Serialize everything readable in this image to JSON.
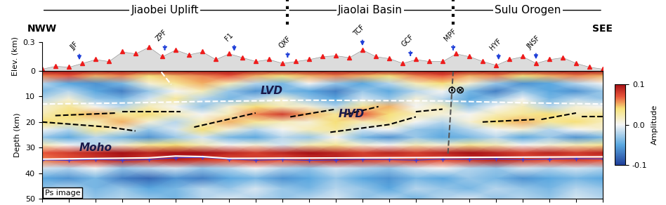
{
  "header": {
    "left": "NWW",
    "right": "SEE",
    "regions": [
      {
        "name": "Jiaobei Uplift",
        "x_range": [
          0,
          92
        ]
      },
      {
        "name": "Jiaolai Basin",
        "x_range": [
          92,
          154
        ]
      },
      {
        "name": "Sulu Orogen",
        "x_range": [
          154,
          210
        ]
      }
    ]
  },
  "chart_data": [
    {
      "type": "area",
      "ylabel": "Elev. (km)",
      "xlim": [
        0,
        210
      ],
      "ylim": [
        0,
        0.3
      ],
      "yticks": [
        0,
        0.3
      ],
      "tick_labels": "y",
      "x": [
        0,
        5,
        10,
        15,
        20,
        25,
        30,
        35,
        40,
        45,
        50,
        55,
        60,
        65,
        70,
        75,
        80,
        85,
        90,
        95,
        100,
        105,
        110,
        115,
        120,
        125,
        130,
        135,
        140,
        145,
        150,
        155,
        160,
        165,
        170,
        175,
        180,
        185,
        190,
        195,
        200,
        205,
        210
      ],
      "series": [
        {
          "type": "area",
          "color": "#dcdcdc",
          "values": [
            0.02,
            0.05,
            0.04,
            0.08,
            0.12,
            0.1,
            0.2,
            0.18,
            0.25,
            0.15,
            0.22,
            0.17,
            0.2,
            0.12,
            0.18,
            0.14,
            0.1,
            0.12,
            0.08,
            0.1,
            0.12,
            0.15,
            0.16,
            0.14,
            0.22,
            0.15,
            0.13,
            0.08,
            0.12,
            0.1,
            0.1,
            0.18,
            0.15,
            0.1,
            0.06,
            0.12,
            0.15,
            0.08,
            0.12,
            0.14,
            0.08,
            0.04,
            0.02
          ]
        },
        {
          "type": "scatter",
          "color": "#ee1c1c",
          "marker": "triangle",
          "values": [
            0.02,
            0.05,
            0.04,
            0.08,
            0.12,
            0.1,
            0.2,
            0.18,
            0.25,
            0.15,
            0.22,
            0.17,
            0.2,
            0.12,
            0.18,
            0.14,
            0.1,
            0.12,
            0.08,
            0.1,
            0.12,
            0.15,
            0.16,
            0.14,
            0.22,
            0.15,
            0.13,
            0.08,
            0.12,
            0.1,
            0.1,
            0.18,
            0.15,
            0.1,
            0.06,
            0.12,
            0.15,
            0.08,
            0.12,
            0.14,
            0.08,
            0.04,
            0.02
          ]
        }
      ],
      "faults": [
        {
          "label": "JJF",
          "x": 14,
          "color": "#1f3fd8",
          "line_style": "solid"
        },
        {
          "label": "ZPF",
          "x": 46,
          "color": "#1f3fd8",
          "line_style": "dotted"
        },
        {
          "label": "F1",
          "x": 72,
          "color": "#1f3fd8",
          "line_style": "solid"
        },
        {
          "label": "QXF",
          "x": 92,
          "color": "#1f3fd8",
          "line_style": "dotted"
        },
        {
          "label": "TCF",
          "x": 120,
          "color": "#1f3fd8",
          "line_style": "solid"
        },
        {
          "label": "GCF",
          "x": 138,
          "color": "#1f3fd8",
          "line_style": "dotted"
        },
        {
          "label": "MPF",
          "x": 154,
          "color": "#1f3fd8",
          "line_style": "dotted"
        },
        {
          "label": "HYF",
          "x": 171,
          "color": "#1f3fd8",
          "line_style": "solid"
        },
        {
          "label": "JNSF",
          "x": 185,
          "color": "#1f3fd8",
          "line_style": "solid"
        }
      ]
    },
    {
      "type": "heatmap",
      "ylabel": "Depth (km)",
      "xlim": [
        0,
        210
      ],
      "ylim": [
        50,
        0
      ],
      "xticks": [
        0,
        10,
        20,
        30,
        40,
        50,
        60,
        70,
        80,
        90,
        100,
        110,
        120,
        130,
        140,
        150,
        160,
        170,
        180,
        190,
        200,
        210
      ],
      "yticks": [
        10,
        20,
        30,
        40,
        50
      ],
      "tick_labels": "y",
      "x": [
        0,
        10,
        20,
        30,
        40,
        50,
        60,
        70,
        80,
        90,
        100,
        110,
        120,
        130,
        140,
        150,
        160,
        170,
        180,
        190,
        200,
        210
      ],
      "y": [
        0,
        2,
        5,
        8,
        11,
        14,
        17,
        20,
        23,
        26,
        29,
        32,
        35,
        38,
        42,
        46,
        50
      ],
      "cells": [
        [
          0.1,
          0.1,
          0.1,
          0.1,
          0.1,
          0.1,
          0.1,
          0.1,
          0.1,
          0.1,
          0.1,
          0.1,
          0.1,
          0.1,
          0.1,
          0.1,
          0.1,
          0.1,
          0.1,
          0.1,
          0.1,
          0.1
        ],
        [
          0.06,
          0.07,
          0.05,
          0.06,
          0.04,
          0.05,
          0.06,
          0.07,
          0.05,
          0.04,
          0.05,
          0.06,
          0.05,
          0.04,
          0.06,
          0.07,
          0.05,
          0.06,
          0.04,
          0.05,
          0.06,
          0.05
        ],
        [
          -0.02,
          -0.05,
          -0.06,
          -0.04,
          0.01,
          0.03,
          0.05,
          0.02,
          -0.02,
          -0.04,
          0.0,
          -0.03,
          -0.05,
          -0.02,
          0.02,
          0.04,
          0.01,
          -0.03,
          -0.06,
          -0.05,
          -0.02,
          0.0
        ],
        [
          -0.04,
          -0.02,
          -0.05,
          -0.07,
          -0.03,
          0.0,
          0.02,
          -0.03,
          -0.06,
          -0.04,
          -0.05,
          -0.07,
          -0.03,
          -0.05,
          -0.02,
          0.0,
          -0.04,
          -0.07,
          -0.03,
          -0.05,
          -0.06,
          -0.03
        ],
        [
          -0.02,
          0.01,
          -0.03,
          -0.04,
          -0.01,
          0.03,
          -0.02,
          -0.04,
          -0.02,
          0.01,
          -0.03,
          -0.05,
          -0.01,
          -0.03,
          0.01,
          -0.02,
          -0.05,
          -0.03,
          0.0,
          -0.04,
          -0.02,
          -0.03
        ],
        [
          0.01,
          0.03,
          0.0,
          -0.02,
          0.02,
          0.0,
          -0.03,
          0.01,
          0.04,
          0.02,
          0.01,
          -0.02,
          0.03,
          0.05,
          0.0,
          0.02,
          -0.03,
          0.0,
          0.02,
          -0.02,
          0.01,
          0.0
        ],
        [
          0.02,
          0.04,
          0.05,
          0.03,
          0.04,
          0.02,
          0.0,
          0.02,
          0.06,
          0.08,
          0.05,
          0.03,
          0.07,
          0.04,
          0.02,
          0.01,
          0.0,
          0.02,
          0.03,
          0.04,
          0.02,
          0.03
        ],
        [
          0.04,
          0.03,
          0.02,
          0.05,
          0.01,
          -0.02,
          0.02,
          0.05,
          0.03,
          0.02,
          0.01,
          0.04,
          0.02,
          0.03,
          0.0,
          -0.02,
          0.01,
          0.04,
          0.05,
          0.03,
          0.04,
          0.02
        ],
        [
          0.0,
          -0.02,
          0.03,
          0.01,
          -0.03,
          -0.01,
          0.04,
          0.01,
          -0.02,
          0.0,
          0.02,
          0.03,
          -0.01,
          0.0,
          -0.03,
          -0.04,
          -0.02,
          0.0,
          0.01,
          -0.02,
          0.0,
          0.01
        ],
        [
          -0.03,
          -0.05,
          -0.02,
          -0.04,
          -0.06,
          -0.03,
          -0.01,
          -0.04,
          -0.05,
          -0.02,
          -0.03,
          0.0,
          -0.04,
          -0.06,
          -0.03,
          -0.05,
          -0.04,
          -0.02,
          -0.05,
          -0.03,
          -0.06,
          -0.04
        ],
        [
          0.02,
          0.0,
          -0.02,
          0.01,
          0.03,
          0.04,
          0.02,
          0.0,
          0.01,
          -0.01,
          0.02,
          0.03,
          0.01,
          0.0,
          0.02,
          0.01,
          0.03,
          0.02,
          0.0,
          0.01,
          0.02,
          0.03
        ],
        [
          0.07,
          0.08,
          0.09,
          0.1,
          0.09,
          0.1,
          0.1,
          0.09,
          0.08,
          0.09,
          0.1,
          0.09,
          0.08,
          0.09,
          0.08,
          0.09,
          0.1,
          0.09,
          0.08,
          0.09,
          0.08,
          0.09
        ],
        [
          0.06,
          0.07,
          0.08,
          0.09,
          0.08,
          0.09,
          0.08,
          0.07,
          0.08,
          0.07,
          0.08,
          0.09,
          0.08,
          0.07,
          0.08,
          0.07,
          0.08,
          0.09,
          0.08,
          0.07,
          0.08,
          0.07
        ],
        [
          -0.01,
          -0.02,
          0.0,
          -0.03,
          -0.02,
          -0.01,
          -0.03,
          -0.02,
          0.0,
          -0.02,
          -0.03,
          -0.01,
          -0.02,
          -0.03,
          -0.01,
          0.0,
          -0.02,
          -0.03,
          -0.01,
          -0.02,
          -0.01,
          -0.02
        ],
        [
          -0.05,
          -0.06,
          -0.04,
          -0.07,
          -0.08,
          -0.06,
          -0.07,
          -0.05,
          -0.04,
          -0.06,
          -0.05,
          -0.03,
          -0.05,
          -0.06,
          -0.04,
          -0.05,
          -0.03,
          -0.04,
          -0.06,
          -0.05,
          -0.04,
          -0.05
        ],
        [
          -0.03,
          -0.02,
          -0.04,
          -0.03,
          -0.05,
          -0.04,
          -0.02,
          -0.03,
          -0.01,
          -0.03,
          -0.04,
          -0.02,
          -0.03,
          -0.05,
          -0.02,
          -0.03,
          -0.04,
          -0.02,
          -0.03,
          -0.04,
          -0.02,
          -0.03
        ],
        [
          -0.02,
          -0.01,
          -0.03,
          -0.02,
          -0.03,
          -0.04,
          -0.02,
          -0.01,
          -0.02,
          -0.03,
          -0.02,
          -0.01,
          -0.03,
          -0.02,
          -0.04,
          -0.02,
          -0.01,
          -0.03,
          -0.02,
          -0.03,
          -0.01,
          -0.02
        ]
      ],
      "colorbar": {
        "label": "Amplitude",
        "range": [
          -0.1,
          0.1
        ],
        "ticks": [
          -0.1,
          {
            "value": 0,
            "label": "0.0"
          },
          0.1
        ]
      },
      "lines": [
        {
          "x": [
            0,
            30,
            60,
            100,
            150,
            180,
            210
          ],
          "y": [
            13,
            12.6,
            12,
            11.5,
            11.8,
            12.5,
            13
          ],
          "color": "#ffffff",
          "line_style": "dashed"
        },
        {
          "x": [
            44.7,
            48.4
          ],
          "y": [
            0.5,
            5.4
          ],
          "color": "#ffffff",
          "line_style": "dashed"
        },
        {
          "x": [
            5,
            28
          ],
          "y": [
            17.5,
            16.5
          ],
          "color": "#000000",
          "line_style": "dashed"
        },
        {
          "x": [
            30,
            52
          ],
          "y": [
            16,
            16
          ],
          "color": "#000000",
          "line_style": "dashed"
        },
        {
          "x": [
            0,
            25,
            35
          ],
          "y": [
            20,
            22,
            23.5
          ],
          "color": "#000000",
          "line_style": "dashed"
        },
        {
          "x": [
            57,
            80
          ],
          "y": [
            22,
            16.5
          ],
          "color": "#000000",
          "line_style": "dashed"
        },
        {
          "x": [
            93,
            110
          ],
          "y": [
            18,
            15
          ],
          "color": "#000000",
          "line_style": "dashed"
        },
        {
          "x": [
            114,
            126
          ],
          "y": [
            17,
            14
          ],
          "color": "#000000",
          "line_style": "dashed"
        },
        {
          "x": [
            108,
            130,
            140
          ],
          "y": [
            24,
            21,
            18
          ],
          "color": "#000000",
          "line_style": "dashed"
        },
        {
          "x": [
            140,
            150
          ],
          "y": [
            16,
            15
          ],
          "color": "#000000",
          "line_style": "dashed"
        },
        {
          "x": [
            165,
            185
          ],
          "y": [
            20,
            19
          ],
          "color": "#000000",
          "line_style": "dashed"
        },
        {
          "x": [
            187,
            200
          ],
          "y": [
            19,
            16.5
          ],
          "color": "#000000",
          "line_style": "dashed"
        },
        {
          "x": [
            202,
            210
          ],
          "y": [
            18,
            18
          ],
          "color": "#000000",
          "line_style": "dashed"
        },
        {
          "x": [
            154,
            152
          ],
          "y": [
            0,
            33
          ],
          "color": "#555555",
          "line_style": "dashed"
        },
        {
          "x": [
            0,
            10,
            20,
            30,
            40,
            50,
            60,
            70,
            80,
            90,
            100,
            110,
            120,
            130,
            140,
            150,
            160,
            170,
            180,
            190,
            200,
            210
          ],
          "y": [
            34.8,
            35.0,
            34.6,
            34.9,
            34.7,
            34.0,
            33.8,
            34.5,
            34.9,
            34.7,
            35.0,
            34.8,
            34.6,
            34.7,
            34.9,
            34.5,
            34.6,
            34.4,
            34.7,
            34.5,
            34.3,
            34.4
          ],
          "color": "#3b3bd6",
          "line_style": "solid",
          "marker": "plus"
        },
        {
          "x": [
            0,
            40,
            50,
            60,
            70,
            120,
            160,
            210
          ],
          "y": [
            34.5,
            34,
            33.3,
            33.5,
            34.2,
            34,
            33.8,
            33.6
          ],
          "color": "#ffffff",
          "line_style": "solid"
        }
      ],
      "annotations": [
        {
          "text": "LVD",
          "x": 86,
          "y": 8,
          "color": "#1a1a4a"
        },
        {
          "text": "HVD",
          "x": 116,
          "y": 17,
          "color": "#1a1a4a"
        },
        {
          "text": "Moho",
          "x": 20,
          "y": 30,
          "color": "#1a1a4a"
        },
        {
          "text": "⊙⊗",
          "x": 155,
          "y": 7.5,
          "color": "#000000"
        }
      ],
      "inset_label": "Ps image"
    }
  ]
}
